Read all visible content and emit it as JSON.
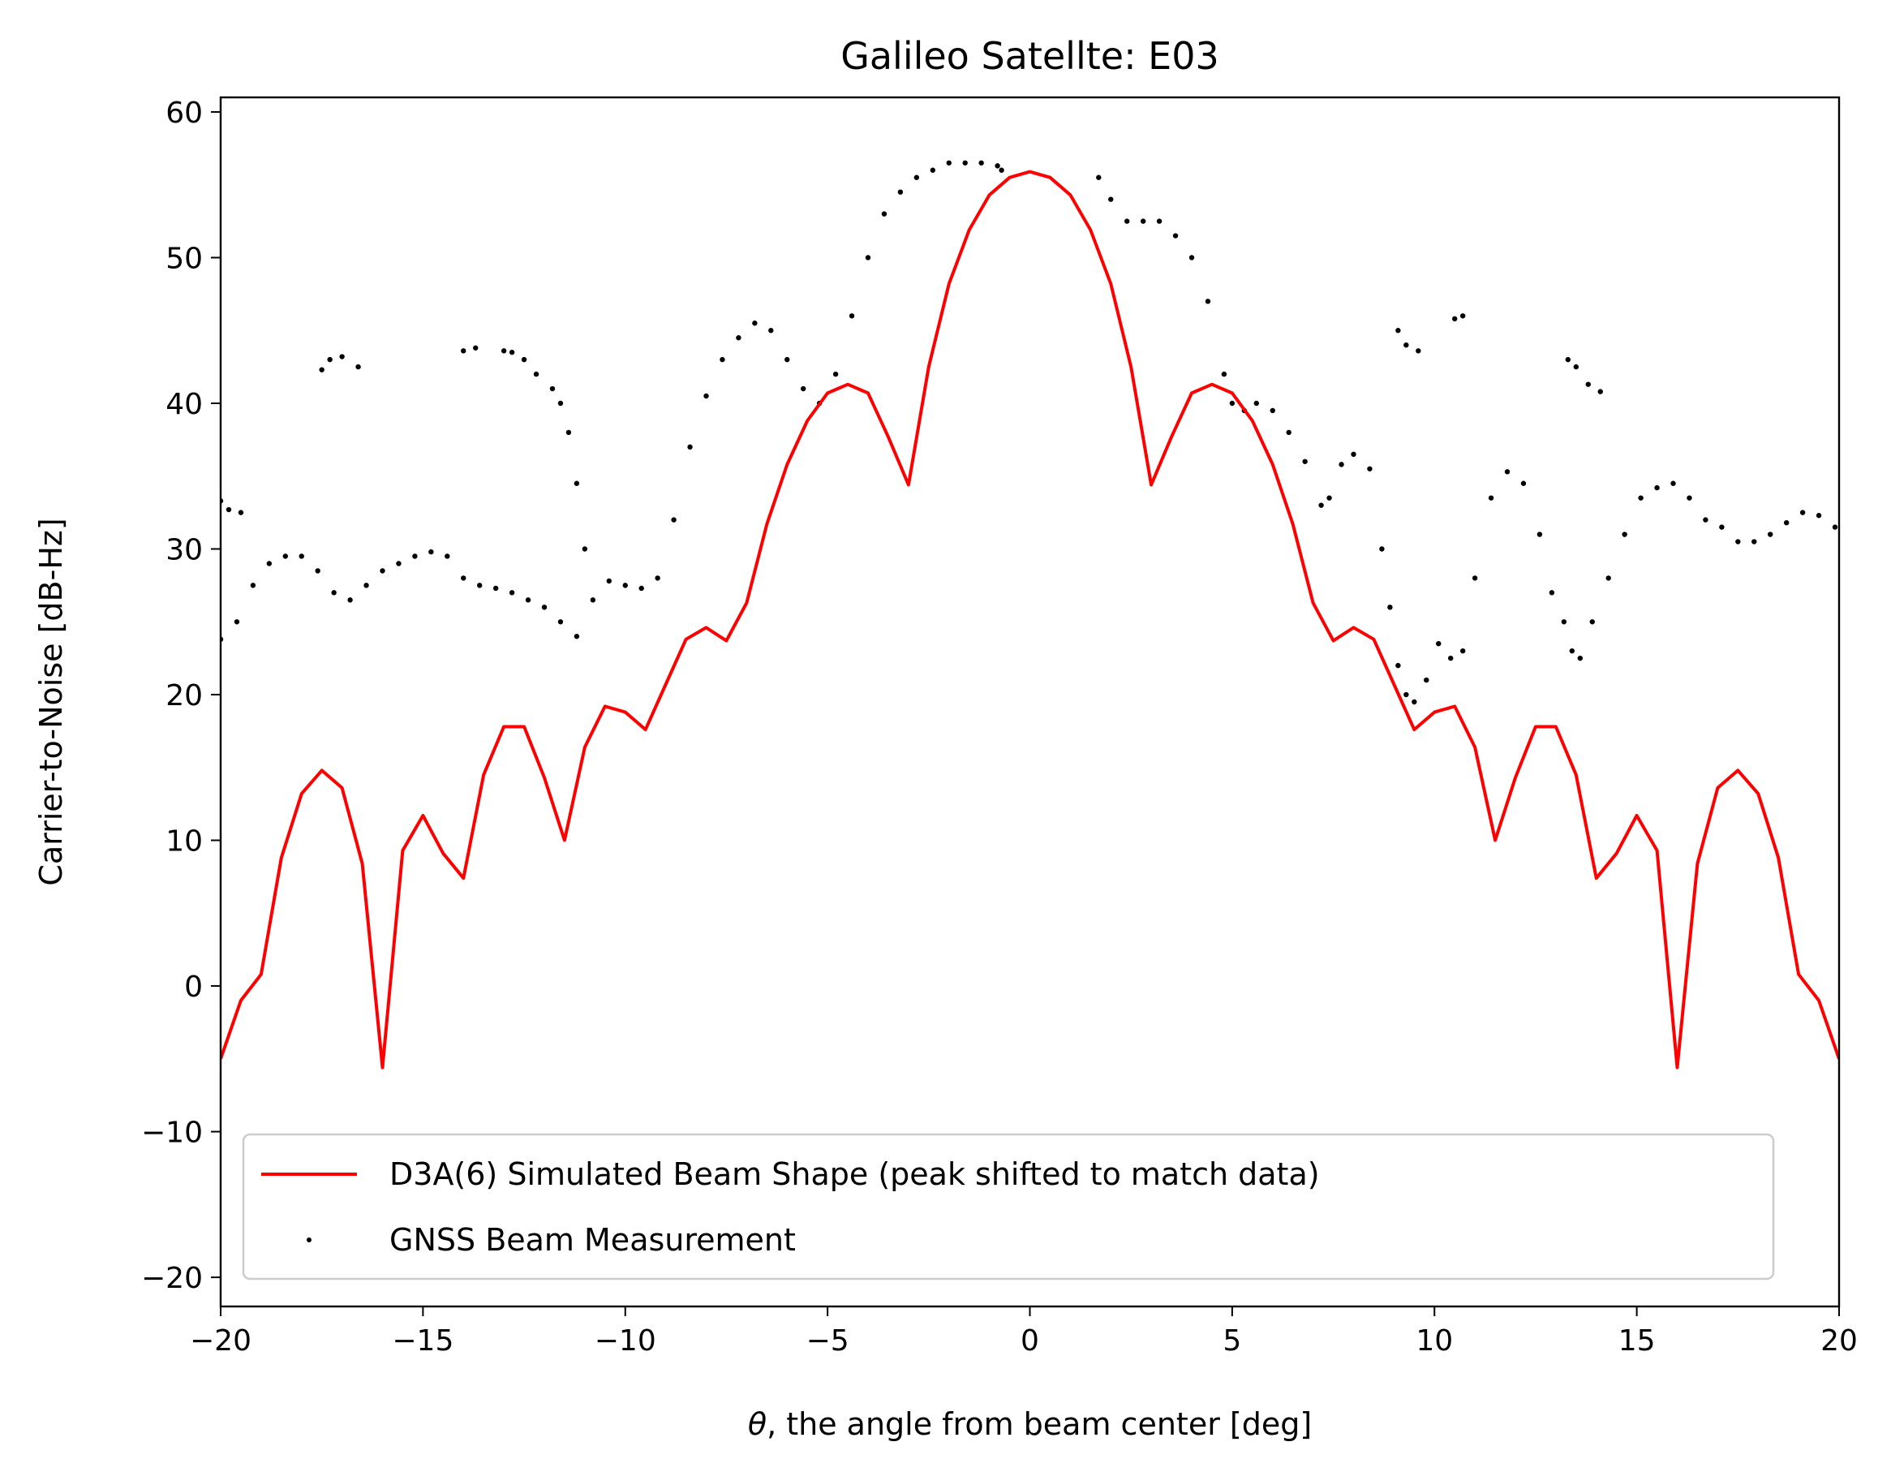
{
  "chart_data": {
    "type": "line",
    "title": "Galileo Satellte: E03",
    "xlabel_symbol": "θ",
    "xlabel_rest": ", the angle from beam center [deg]",
    "ylabel": "Carrier-to-Noise [dB-Hz]",
    "xlim": [
      -20,
      20
    ],
    "ylim": [
      -22,
      61
    ],
    "xticks": [
      -20,
      -15,
      -10,
      -5,
      0,
      5,
      10,
      15,
      20
    ],
    "xtick_labels": [
      "−20",
      "−15",
      "−10",
      "−5",
      "0",
      "5",
      "10",
      "15",
      "20"
    ],
    "yticks": [
      -20,
      -10,
      0,
      10,
      20,
      30,
      40,
      50,
      60
    ],
    "ytick_labels": [
      "−20",
      "−10",
      "0",
      "10",
      "20",
      "30",
      "40",
      "50",
      "60"
    ],
    "grid": false,
    "legend_position": "bottom",
    "series": [
      {
        "name": "D3A(6) Simulated Beam Shape (peak shifted to match data)",
        "type": "line",
        "color": "#ff0000",
        "x": [
          -20,
          -19.5,
          -19,
          -18.5,
          -18,
          -17.5,
          -17,
          -16.5,
          -16,
          -15.5,
          -15,
          -14.5,
          -14,
          -13.5,
          -13,
          -12.5,
          -12,
          -11.5,
          -11,
          -10.5,
          -10,
          -9.5,
          -9,
          -8.5,
          -8,
          -7.5,
          -7,
          -6.5,
          -6,
          -5.5,
          -5,
          -4.5,
          -4,
          -3.5,
          -3,
          -2.5,
          -2,
          -1.5,
          -1,
          -0.5,
          0,
          0.5,
          1,
          1.5,
          2,
          2.5,
          3,
          3.5,
          4,
          4.5,
          5,
          5.5,
          6,
          6.5,
          7,
          7.5,
          8,
          8.5,
          9,
          9.5,
          10,
          10.5,
          11,
          11.5,
          12,
          12.5,
          13,
          13.5,
          14,
          14.5,
          15,
          15.5,
          16,
          16.5,
          17,
          17.5,
          18,
          18.5,
          19,
          19.5,
          20
        ],
        "y": [
          -5,
          -1,
          0.8,
          8.8,
          13.2,
          14.8,
          13.6,
          8.4,
          -5.6,
          9.3,
          11.7,
          9.1,
          7.4,
          14.5,
          17.8,
          17.8,
          14.3,
          10,
          16.4,
          19.2,
          18.8,
          17.6,
          20.7,
          23.8,
          24.6,
          23.7,
          26.3,
          31.7,
          35.8,
          38.8,
          40.7,
          41.3,
          40.7,
          37.7,
          34.4,
          42.5,
          48.2,
          51.9,
          54.3,
          55.5,
          55.9,
          55.5,
          54.3,
          51.9,
          48.2,
          42.5,
          34.4,
          37.7,
          40.7,
          41.3,
          40.7,
          38.8,
          35.8,
          31.7,
          26.3,
          23.7,
          24.6,
          23.8,
          20.7,
          17.6,
          18.8,
          19.2,
          16.4,
          10,
          14.3,
          17.8,
          17.8,
          14.5,
          7.4,
          9.1,
          11.7,
          9.3,
          -5.6,
          8.4,
          13.6,
          14.8,
          13.2,
          8.8,
          0.8,
          -1,
          -5
        ]
      },
      {
        "name": "GNSS Beam Measurement",
        "type": "scatter",
        "color": "#000000",
        "x": [
          -20,
          -19.6,
          -19.2,
          -18.8,
          -18.4,
          -18,
          -17.6,
          -17.2,
          -16.8,
          -16.4,
          -16,
          -15.6,
          -15.2,
          -14.8,
          -14.4,
          -14,
          -13.6,
          -13.2,
          -12.8,
          -12.4,
          -12,
          -11.6,
          -11.2,
          -10.8,
          -10.4,
          -10,
          -9.6,
          -9.2,
          -8.8,
          -8.4,
          -8,
          -7.6,
          -7.2,
          -6.8,
          -6.4,
          -6,
          -5.6,
          -5.2,
          -4.8,
          -4.4,
          -4,
          -3.6,
          -3.2,
          -2.8,
          -2.4,
          -2,
          -1.6,
          -1.2,
          -0.8,
          -0.7,
          1.7,
          2,
          2.4,
          2.8,
          3.2,
          3.6,
          4,
          4.4,
          4.8,
          5,
          5.3,
          5.6,
          6,
          6.4,
          6.8,
          7.2,
          7.4,
          7.7,
          8,
          8.4,
          8.7,
          8.9,
          9.1,
          9.3,
          9.5,
          9.8,
          10.1,
          10.4,
          10.7,
          11,
          11.4,
          11.8,
          12.2,
          12.6,
          12.9,
          13.2,
          13.4,
          13.6,
          13.9,
          14.3,
          14.7,
          15.1,
          15.5,
          15.9,
          16.3,
          16.7,
          17.1,
          17.5,
          17.9,
          18.3,
          18.7,
          19.1,
          19.5,
          19.9,
          -20,
          -19.8,
          -19.5,
          -17.5,
          -17.3,
          -17,
          -16.6,
          -14,
          -13.7,
          -13,
          -12.8,
          -12.5,
          -12.2,
          -11.8,
          -11.6,
          -11.4,
          -11.2,
          -11,
          9.1,
          9.3,
          9.6,
          10.5,
          10.7,
          13.3,
          13.5,
          13.8,
          14.1
        ],
        "y": [
          23.8,
          25,
          27.5,
          29,
          29.5,
          29.5,
          28.5,
          27,
          26.5,
          27.5,
          28.5,
          29,
          29.5,
          29.8,
          29.5,
          28,
          27.5,
          27.3,
          27,
          26.5,
          26,
          25,
          24,
          26.5,
          27.8,
          27.5,
          27.3,
          28,
          32,
          37,
          40.5,
          43,
          44.5,
          45.5,
          45,
          43,
          41,
          40,
          42,
          46,
          50,
          53,
          54.5,
          55.5,
          56,
          56.5,
          56.5,
          56.5,
          56.3,
          56,
          55.5,
          54,
          52.5,
          52.5,
          52.5,
          51.5,
          50,
          47,
          42,
          40,
          39.5,
          40,
          39.5,
          38,
          36,
          33,
          33.5,
          35.8,
          36.5,
          35.5,
          30,
          26,
          22,
          20,
          19.5,
          21,
          23.5,
          22.5,
          23,
          28,
          33.5,
          35.3,
          34.5,
          31,
          27,
          25,
          23,
          22.5,
          25,
          28,
          31,
          33.5,
          34.2,
          34.5,
          33.5,
          32,
          31.5,
          30.5,
          30.5,
          31,
          31.8,
          32.5,
          32.3,
          31.5,
          33.3,
          32.7,
          32.5,
          42.3,
          43,
          43.2,
          42.5,
          43.6,
          43.8,
          43.6,
          43.5,
          43,
          42,
          41,
          40,
          38,
          34.5,
          30,
          45,
          44,
          43.6,
          45.8,
          46,
          43,
          42.5,
          41.3,
          40.8
        ]
      }
    ]
  }
}
